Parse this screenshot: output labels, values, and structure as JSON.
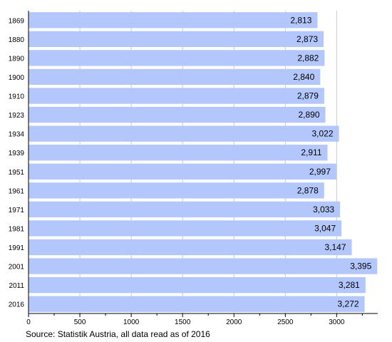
{
  "chart_data": {
    "type": "bar",
    "orientation": "horizontal",
    "categories": [
      "1869",
      "1880",
      "1890",
      "1900",
      "1910",
      "1923",
      "1934",
      "1939",
      "1951",
      "1961",
      "1971",
      "1981",
      "1991",
      "2001",
      "2011",
      "2016"
    ],
    "values": [
      2813,
      2873,
      2882,
      2840,
      2879,
      2890,
      3022,
      2911,
      2997,
      2878,
      3033,
      3047,
      3147,
      3395,
      3281,
      3272
    ],
    "value_labels": [
      "2,813",
      "2,873",
      "2,882",
      "2,840",
      "2,879",
      "2,890",
      "3,022",
      "2,911",
      "2,997",
      "2,878",
      "3,033",
      "3,047",
      "3,147",
      "3,395",
      "3,281",
      "3,272"
    ],
    "x_ticks": [
      0,
      500,
      1000,
      1500,
      2000,
      2500,
      3000
    ],
    "x_tick_labels": [
      "0",
      "500",
      "1000",
      "1500",
      "2000",
      "2500",
      "3000"
    ],
    "xlim": [
      0,
      3400
    ],
    "grid": "vertical",
    "bar_color": "#b3c7fd",
    "title": "",
    "xlabel": "",
    "ylabel": ""
  },
  "footer": {
    "source": "Source: Statistik Austria, all data read as of 2016"
  }
}
